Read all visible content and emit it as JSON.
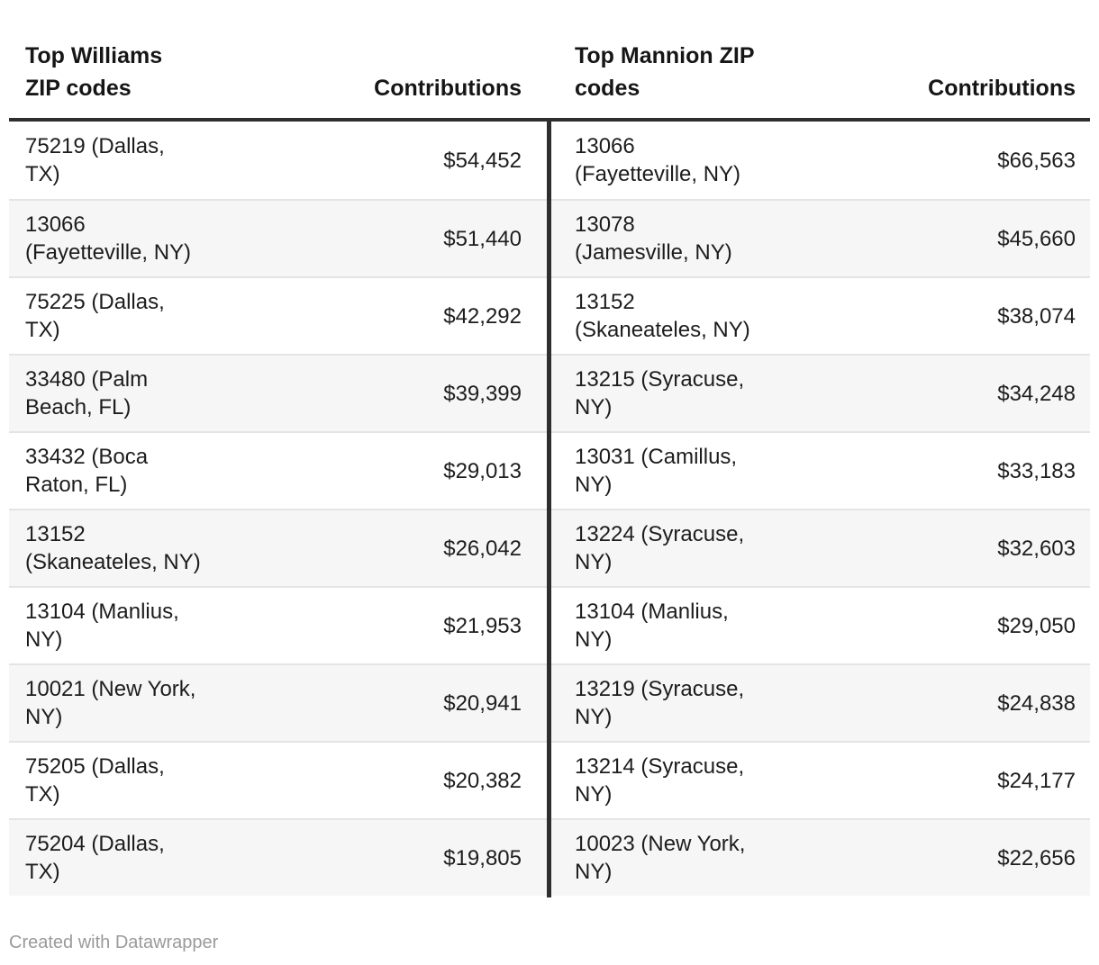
{
  "colors": {
    "header_border": "#2e2e2e",
    "column_divider": "#2e2e2e",
    "row_stripe": "#f6f6f6",
    "row_separator": "#e4e4e4",
    "body_text": "#1d1d1d",
    "header_text": "#161616",
    "footer_text": "#9a9a9a"
  },
  "footer": {
    "credit": "Created with Datawrapper"
  },
  "chart_data": [
    {
      "type": "table",
      "title": "Top Williams ZIP codes",
      "zip_header": "Top Williams\nZIP codes",
      "contributions_header": "Contributions",
      "rows": [
        {
          "zip": "75219 (Dallas,\nTX)",
          "contribution": "$54,452"
        },
        {
          "zip": "13066\n(Fayetteville, NY)",
          "contribution": "$51,440"
        },
        {
          "zip": "75225 (Dallas,\nTX)",
          "contribution": "$42,292"
        },
        {
          "zip": "33480 (Palm\nBeach, FL)",
          "contribution": "$39,399"
        },
        {
          "zip": "33432 (Boca\nRaton, FL)",
          "contribution": "$29,013"
        },
        {
          "zip": "13152\n(Skaneateles, NY)",
          "contribution": "$26,042"
        },
        {
          "zip": "13104 (Manlius,\nNY)",
          "contribution": "$21,953"
        },
        {
          "zip": "10021 (New York,\nNY)",
          "contribution": "$20,941"
        },
        {
          "zip": "75205 (Dallas,\nTX)",
          "contribution": "$20,382"
        },
        {
          "zip": "75204 (Dallas,\nTX)",
          "contribution": "$19,805"
        }
      ]
    },
    {
      "type": "table",
      "title": "Top Mannion ZIP codes",
      "zip_header": "Top Mannion ZIP\ncodes",
      "contributions_header": "Contributions",
      "rows": [
        {
          "zip": "13066\n(Fayetteville, NY)",
          "contribution": "$66,563"
        },
        {
          "zip": "13078\n(Jamesville, NY)",
          "contribution": "$45,660"
        },
        {
          "zip": "13152\n(Skaneateles, NY)",
          "contribution": "$38,074"
        },
        {
          "zip": "13215 (Syracuse,\nNY)",
          "contribution": "$34,248"
        },
        {
          "zip": "13031 (Camillus,\nNY)",
          "contribution": "$33,183"
        },
        {
          "zip": "13224 (Syracuse,\nNY)",
          "contribution": "$32,603"
        },
        {
          "zip": "13104 (Manlius,\nNY)",
          "contribution": "$29,050"
        },
        {
          "zip": "13219 (Syracuse,\nNY)",
          "contribution": "$24,838"
        },
        {
          "zip": "13214 (Syracuse,\nNY)",
          "contribution": "$24,177"
        },
        {
          "zip": "10023 (New York,\nNY)",
          "contribution": "$22,656"
        }
      ]
    }
  ]
}
